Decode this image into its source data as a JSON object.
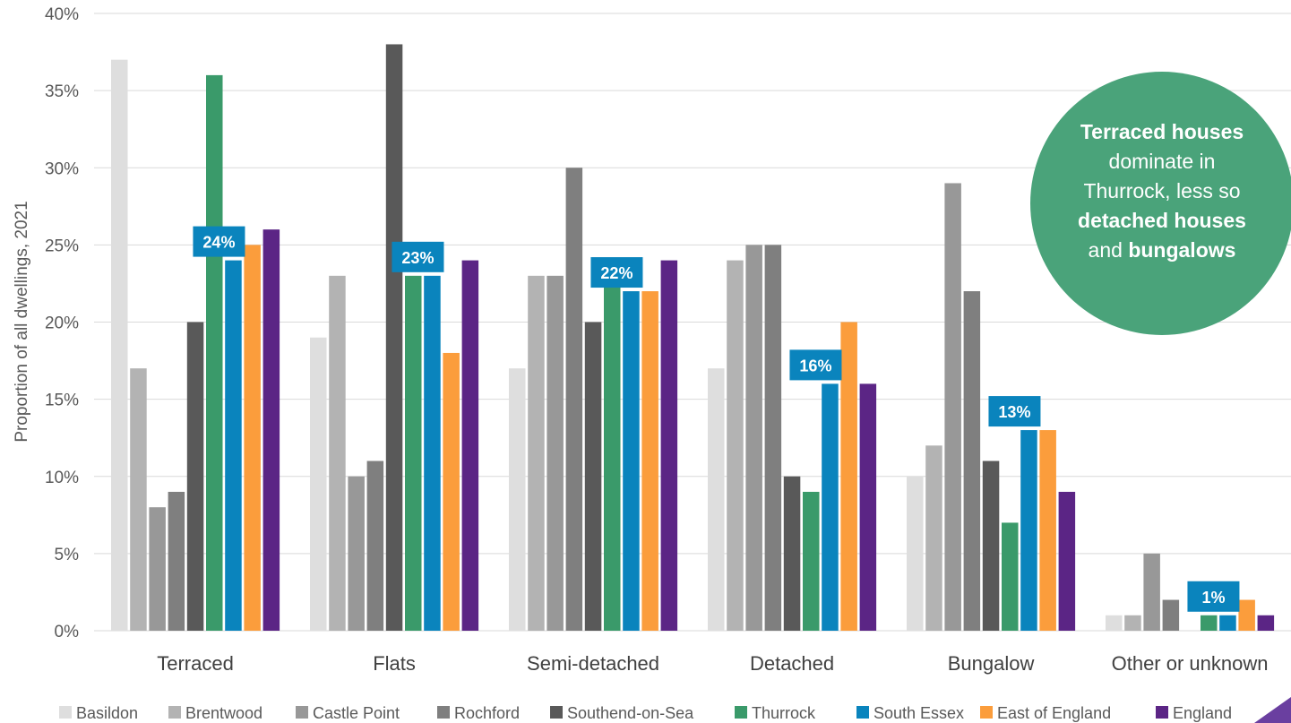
{
  "chart_data": {
    "type": "bar",
    "ylabel": "Proportion of all dwellings, 2021",
    "ylim": [
      0,
      40
    ],
    "yticks": [
      "0%",
      "5%",
      "10%",
      "15%",
      "20%",
      "25%",
      "30%",
      "35%",
      "40%"
    ],
    "grid": true,
    "legend_position": "bottom",
    "categories": [
      "Terraced",
      "Flats",
      "Semi-detached",
      "Detached",
      "Bungalow",
      "Other or unknown"
    ],
    "series": [
      {
        "name": "Basildon",
        "color": "#dedede",
        "values": [
          37,
          19,
          17,
          17,
          10,
          1
        ]
      },
      {
        "name": "Brentwood",
        "color": "#b3b3b3",
        "values": [
          17,
          23,
          23,
          24,
          12,
          1
        ]
      },
      {
        "name": "Castle Point",
        "color": "#989898",
        "values": [
          8,
          10,
          23,
          25,
          29,
          5
        ]
      },
      {
        "name": "Rochford",
        "color": "#7f7f7f",
        "values": [
          9,
          11,
          30,
          25,
          22,
          2
        ]
      },
      {
        "name": "Southend-on-Sea",
        "color": "#595959",
        "values": [
          20,
          38,
          20,
          10,
          11,
          0
        ]
      },
      {
        "name": "Thurrock",
        "color": "#3a9a6a",
        "values": [
          36,
          23,
          23,
          9,
          7,
          1
        ]
      },
      {
        "name": "South Essex",
        "color": "#0a84bd",
        "values": [
          24,
          23,
          22,
          16,
          13,
          1
        ]
      },
      {
        "name": "East of England",
        "color": "#fb9d3c",
        "values": [
          25,
          18,
          22,
          20,
          13,
          2
        ]
      },
      {
        "name": "England",
        "color": "#5b2585",
        "values": [
          26,
          24,
          24,
          16,
          9,
          1
        ]
      }
    ],
    "highlight_labels": [
      "24%",
      "23%",
      "22%",
      "16%",
      "13%",
      "1%"
    ],
    "highlight_series": "South Essex",
    "highlight_color": "#0a84bd",
    "callout": {
      "color": "#4aa37a",
      "lines": [
        [
          {
            "text": "Terraced houses",
            "bold": true
          }
        ],
        [
          {
            "text": "dominate in",
            "bold": false
          }
        ],
        [
          {
            "text": "Thurrock, less so",
            "bold": false
          }
        ],
        [
          {
            "text": "detached houses",
            "bold": true
          }
        ],
        [
          {
            "text": "and ",
            "bold": false
          },
          {
            "text": "bungalows",
            "bold": true
          }
        ]
      ]
    },
    "accent_color": "#6a3fa0"
  }
}
